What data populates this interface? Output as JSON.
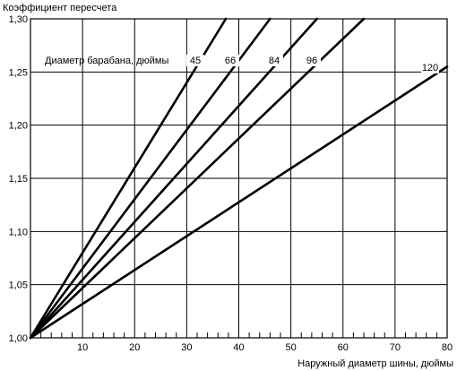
{
  "chart_data": {
    "type": "line",
    "title": "",
    "ylabel": "Коэффициент пересчета",
    "xlabel": "Наружный диаметр шины, дюймы",
    "legend_title": "Диаметр барабана, дюймы",
    "xlim": [
      0,
      80
    ],
    "ylim": [
      1.0,
      1.3
    ],
    "x_ticks": [
      10,
      20,
      30,
      40,
      50,
      60,
      70,
      80
    ],
    "x_tick_labels": [
      "10",
      "20",
      "30",
      "40",
      "50",
      "60",
      "70",
      "80"
    ],
    "y_ticks": [
      1.0,
      1.05,
      1.1,
      1.15,
      1.2,
      1.25,
      1.3
    ],
    "y_tick_labels": [
      "1,00",
      "1,05",
      "1,10",
      "1,15",
      "1,20",
      "1,25",
      "1,30"
    ],
    "grid": true,
    "minor_x_step": 2,
    "series": [
      {
        "name": "45",
        "x": [
          0,
          37.5
        ],
        "y": [
          1.0,
          1.3
        ]
      },
      {
        "name": "66",
        "x": [
          0,
          46
        ],
        "y": [
          1.0,
          1.3
        ]
      },
      {
        "name": "84",
        "x": [
          0,
          55
        ],
        "y": [
          1.0,
          1.3
        ]
      },
      {
        "name": "96",
        "x": [
          0,
          64
        ],
        "y": [
          1.0,
          1.3
        ]
      },
      {
        "name": "120",
        "x": [
          0,
          80
        ],
        "y": [
          1.0,
          1.255
        ]
      }
    ]
  }
}
